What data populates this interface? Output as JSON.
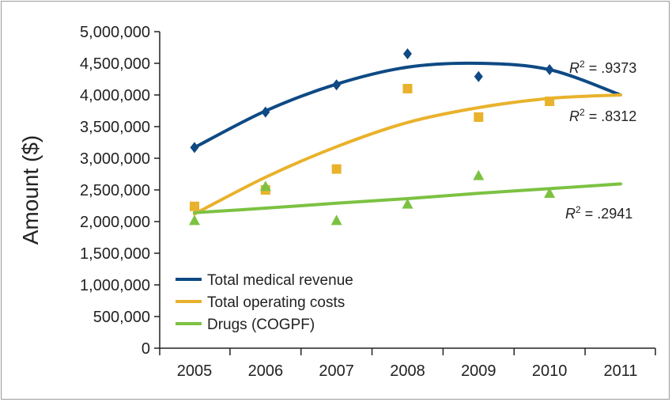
{
  "chart_data": {
    "type": "scatter",
    "title": "",
    "xlabel": "",
    "ylabel": "Amount ($)",
    "x": [
      "2005",
      "2006",
      "2007",
      "2008",
      "2009",
      "2010",
      "2011"
    ],
    "ylim": [
      0,
      5000000
    ],
    "yticks": [
      0,
      500000,
      1000000,
      1500000,
      2000000,
      2500000,
      3000000,
      3500000,
      4000000,
      4500000,
      5000000
    ],
    "ytick_labels": [
      "0",
      "500,000",
      "1,000,000",
      "1,500,000",
      "2,000,000",
      "2,500,000",
      "3,000,000",
      "3,500,000",
      "4,000,000",
      "4,500,000",
      "5,000,000"
    ],
    "grid": false,
    "legend_position": "bottom-left",
    "series": [
      {
        "name": "Total medical revenue",
        "color": "#0e4a84",
        "marker": "diamond",
        "values": [
          3170000,
          3730000,
          4160000,
          4650000,
          4290000,
          4400000,
          null
        ],
        "trend": [
          3170000,
          3748000,
          4171000,
          4439000,
          4500000,
          4400000,
          4000000
        ],
        "r2_prefix": "R",
        "r2_sup": "2",
        "r2_value": " = .9373"
      },
      {
        "name": "Total operating costs",
        "color": "#e9b22c",
        "marker": "square",
        "values": [
          2240000,
          2500000,
          2830000,
          4100000,
          3650000,
          3900000,
          null
        ],
        "trend": [
          2120000,
          2700000,
          3182000,
          3565000,
          3800000,
          3946000,
          4000000
        ],
        "r2_prefix": "R",
        "r2_sup": "2",
        "r2_value": " = .8312"
      },
      {
        "name": "Drugs (COGPF)",
        "color": "#7cc242",
        "marker": "triangle",
        "values": [
          2020000,
          2560000,
          2020000,
          2280000,
          2730000,
          2450000,
          null
        ],
        "trend": [
          2140000,
          2212000,
          2290000,
          2363000,
          2447000,
          2520000,
          2595000
        ],
        "r2_prefix": "R",
        "r2_sup": "2",
        "r2_value": " = .2941"
      }
    ]
  }
}
